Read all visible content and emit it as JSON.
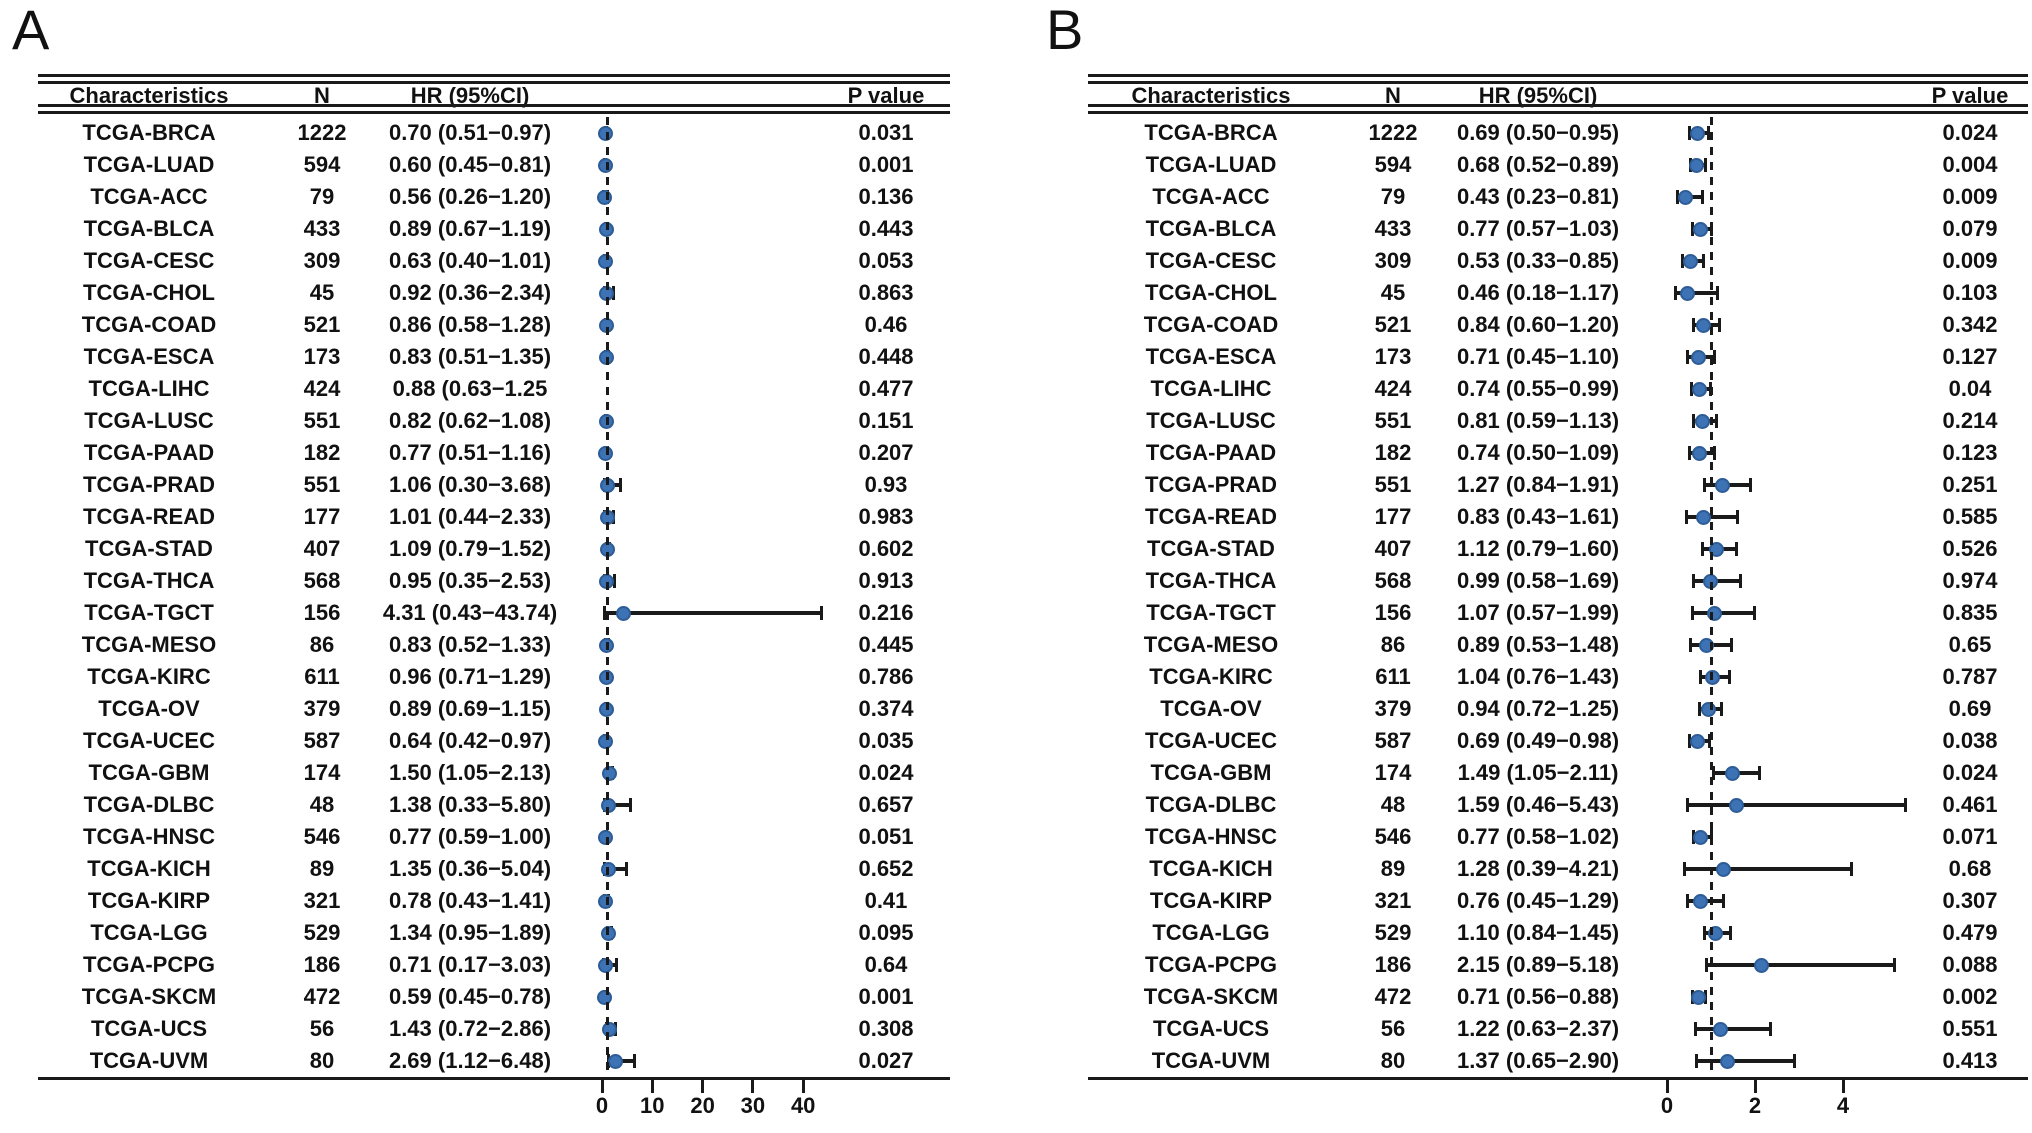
{
  "figure": {
    "description": "Two-panel forest plot of TCGA cohorts: Characteristics, N, HR (95%CI), P value"
  },
  "chart_data": [
    {
      "type": "scatter",
      "variant": "forest-plot",
      "panel": "A",
      "columns": {
        "characteristics": "Characteristics",
        "n": "N",
        "hr_ci": "HR (95%CI)",
        "p_value": "P value"
      },
      "x_axis": {
        "ticks": [
          0,
          10,
          20,
          30,
          40
        ],
        "reference_line": 1,
        "range": [
          0,
          45
        ]
      },
      "marker_color": "#3d72b4",
      "line_color": "#1a1a1a",
      "rows": [
        {
          "name": "TCGA-BRCA",
          "n": "1222",
          "hr": 0.7,
          "ci_low": 0.51,
          "ci_high": 0.97,
          "hr_ci_text": "0.70 (0.51−0.97)",
          "p_value": "0.031"
        },
        {
          "name": "TCGA-LUAD",
          "n": "594",
          "hr": 0.6,
          "ci_low": 0.45,
          "ci_high": 0.81,
          "hr_ci_text": "0.60 (0.45−0.81)",
          "p_value": "0.001"
        },
        {
          "name": "TCGA-ACC",
          "n": "79",
          "hr": 0.56,
          "ci_low": 0.26,
          "ci_high": 1.2,
          "hr_ci_text": "0.56 (0.26−1.20)",
          "p_value": "0.136"
        },
        {
          "name": "TCGA-BLCA",
          "n": "433",
          "hr": 0.89,
          "ci_low": 0.67,
          "ci_high": 1.19,
          "hr_ci_text": "0.89 (0.67−1.19)",
          "p_value": "0.443"
        },
        {
          "name": "TCGA-CESC",
          "n": "309",
          "hr": 0.63,
          "ci_low": 0.4,
          "ci_high": 1.01,
          "hr_ci_text": "0.63 (0.40−1.01)",
          "p_value": "0.053"
        },
        {
          "name": "TCGA-CHOL",
          "n": "45",
          "hr": 0.92,
          "ci_low": 0.36,
          "ci_high": 2.34,
          "hr_ci_text": "0.92 (0.36−2.34)",
          "p_value": "0.863"
        },
        {
          "name": "TCGA-COAD",
          "n": "521",
          "hr": 0.86,
          "ci_low": 0.58,
          "ci_high": 1.28,
          "hr_ci_text": "0.86 (0.58−1.28)",
          "p_value": "0.46"
        },
        {
          "name": "TCGA-ESCA",
          "n": "173",
          "hr": 0.83,
          "ci_low": 0.51,
          "ci_high": 1.35,
          "hr_ci_text": "0.83 (0.51−1.35)",
          "p_value": "0.448"
        },
        {
          "name": "TCGA-LIHC",
          "n": "424",
          "hr": 0.88,
          "ci_low": 0.63,
          "ci_high": 1.25,
          "hr_ci_text": "0.88 (0.63−1.25",
          "p_value": "0.477",
          "marker": false
        },
        {
          "name": "TCGA-LUSC",
          "n": "551",
          "hr": 0.82,
          "ci_low": 0.62,
          "ci_high": 1.08,
          "hr_ci_text": "0.82 (0.62−1.08)",
          "p_value": "0.151"
        },
        {
          "name": "TCGA-PAAD",
          "n": "182",
          "hr": 0.77,
          "ci_low": 0.51,
          "ci_high": 1.16,
          "hr_ci_text": "0.77 (0.51−1.16)",
          "p_value": "0.207"
        },
        {
          "name": "TCGA-PRAD",
          "n": "551",
          "hr": 1.06,
          "ci_low": 0.3,
          "ci_high": 3.68,
          "hr_ci_text": "1.06 (0.30−3.68)",
          "p_value": "0.93"
        },
        {
          "name": "TCGA-READ",
          "n": "177",
          "hr": 1.01,
          "ci_low": 0.44,
          "ci_high": 2.33,
          "hr_ci_text": "1.01 (0.44−2.33)",
          "p_value": "0.983"
        },
        {
          "name": "TCGA-STAD",
          "n": "407",
          "hr": 1.09,
          "ci_low": 0.79,
          "ci_high": 1.52,
          "hr_ci_text": "1.09 (0.79−1.52)",
          "p_value": "0.602"
        },
        {
          "name": "TCGA-THCA",
          "n": "568",
          "hr": 0.95,
          "ci_low": 0.35,
          "ci_high": 2.53,
          "hr_ci_text": "0.95 (0.35−2.53)",
          "p_value": "0.913"
        },
        {
          "name": "TCGA-TGCT",
          "n": "156",
          "hr": 4.31,
          "ci_low": 0.43,
          "ci_high": 43.74,
          "hr_ci_text": "4.31 (0.43−43.74)",
          "p_value": "0.216"
        },
        {
          "name": "TCGA-MESO",
          "n": "86",
          "hr": 0.83,
          "ci_low": 0.52,
          "ci_high": 1.33,
          "hr_ci_text": "0.83 (0.52−1.33)",
          "p_value": "0.445"
        },
        {
          "name": "TCGA-KIRC",
          "n": "611",
          "hr": 0.96,
          "ci_low": 0.71,
          "ci_high": 1.29,
          "hr_ci_text": "0.96 (0.71−1.29)",
          "p_value": "0.786"
        },
        {
          "name": "TCGA-OV",
          "n": "379",
          "hr": 0.89,
          "ci_low": 0.69,
          "ci_high": 1.15,
          "hr_ci_text": "0.89 (0.69−1.15)",
          "p_value": "0.374"
        },
        {
          "name": "TCGA-UCEC",
          "n": "587",
          "hr": 0.64,
          "ci_low": 0.42,
          "ci_high": 0.97,
          "hr_ci_text": "0.64 (0.42−0.97)",
          "p_value": "0.035"
        },
        {
          "name": "TCGA-GBM",
          "n": "174",
          "hr": 1.5,
          "ci_low": 1.05,
          "ci_high": 2.13,
          "hr_ci_text": "1.50 (1.05−2.13)",
          "p_value": "0.024"
        },
        {
          "name": "TCGA-DLBC",
          "n": "48",
          "hr": 1.38,
          "ci_low": 0.33,
          "ci_high": 5.8,
          "hr_ci_text": "1.38 (0.33−5.80)",
          "p_value": "0.657"
        },
        {
          "name": "TCGA-HNSC",
          "n": "546",
          "hr": 0.77,
          "ci_low": 0.59,
          "ci_high": 1.0,
          "hr_ci_text": "0.77 (0.59−1.00)",
          "p_value": "0.051"
        },
        {
          "name": "TCGA-KICH",
          "n": "89",
          "hr": 1.35,
          "ci_low": 0.36,
          "ci_high": 5.04,
          "hr_ci_text": "1.35 (0.36−5.04)",
          "p_value": "0.652"
        },
        {
          "name": "TCGA-KIRP",
          "n": "321",
          "hr": 0.78,
          "ci_low": 0.43,
          "ci_high": 1.41,
          "hr_ci_text": "0.78 (0.43−1.41)",
          "p_value": "0.41"
        },
        {
          "name": "TCGA-LGG",
          "n": "529",
          "hr": 1.34,
          "ci_low": 0.95,
          "ci_high": 1.89,
          "hr_ci_text": "1.34 (0.95−1.89)",
          "p_value": "0.095"
        },
        {
          "name": "TCGA-PCPG",
          "n": "186",
          "hr": 0.71,
          "ci_low": 0.17,
          "ci_high": 3.03,
          "hr_ci_text": "0.71 (0.17−3.03)",
          "p_value": "0.64"
        },
        {
          "name": "TCGA-SKCM",
          "n": "472",
          "hr": 0.59,
          "ci_low": 0.45,
          "ci_high": 0.78,
          "hr_ci_text": "0.59 (0.45−0.78)",
          "p_value": "0.001"
        },
        {
          "name": "TCGA-UCS",
          "n": "56",
          "hr": 1.43,
          "ci_low": 0.72,
          "ci_high": 2.86,
          "hr_ci_text": "1.43 (0.72−2.86)",
          "p_value": "0.308"
        },
        {
          "name": "TCGA-UVM",
          "n": "80",
          "hr": 2.69,
          "ci_low": 1.12,
          "ci_high": 6.48,
          "hr_ci_text": "2.69 (1.12−6.48)",
          "p_value": "0.027"
        }
      ]
    },
    {
      "type": "scatter",
      "variant": "forest-plot",
      "panel": "B",
      "columns": {
        "characteristics": "Characteristics",
        "n": "N",
        "hr_ci": "HR (95%CI)",
        "p_value": "P value"
      },
      "x_axis": {
        "ticks": [
          0,
          2,
          4
        ],
        "reference_line": 1,
        "range": [
          0,
          6
        ]
      },
      "marker_color": "#3d72b4",
      "line_color": "#1a1a1a",
      "rows": [
        {
          "name": "TCGA-BRCA",
          "n": "1222",
          "hr": 0.69,
          "ci_low": 0.5,
          "ci_high": 0.95,
          "hr_ci_text": "0.69 (0.50−0.95)",
          "p_value": "0.024"
        },
        {
          "name": "TCGA-LUAD",
          "n": "594",
          "hr": 0.68,
          "ci_low": 0.52,
          "ci_high": 0.89,
          "hr_ci_text": "0.68 (0.52−0.89)",
          "p_value": "0.004"
        },
        {
          "name": "TCGA-ACC",
          "n": "79",
          "hr": 0.43,
          "ci_low": 0.23,
          "ci_high": 0.81,
          "hr_ci_text": "0.43 (0.23−0.81)",
          "p_value": "0.009"
        },
        {
          "name": "TCGA-BLCA",
          "n": "433",
          "hr": 0.77,
          "ci_low": 0.57,
          "ci_high": 1.03,
          "hr_ci_text": "0.77 (0.57−1.03)",
          "p_value": "0.079"
        },
        {
          "name": "TCGA-CESC",
          "n": "309",
          "hr": 0.53,
          "ci_low": 0.33,
          "ci_high": 0.85,
          "hr_ci_text": "0.53 (0.33−0.85)",
          "p_value": "0.009"
        },
        {
          "name": "TCGA-CHOL",
          "n": "45",
          "hr": 0.46,
          "ci_low": 0.18,
          "ci_high": 1.17,
          "hr_ci_text": "0.46 (0.18−1.17)",
          "p_value": "0.103"
        },
        {
          "name": "TCGA-COAD",
          "n": "521",
          "hr": 0.84,
          "ci_low": 0.6,
          "ci_high": 1.2,
          "hr_ci_text": "0.84 (0.60−1.20)",
          "p_value": "0.342"
        },
        {
          "name": "TCGA-ESCA",
          "n": "173",
          "hr": 0.71,
          "ci_low": 0.45,
          "ci_high": 1.1,
          "hr_ci_text": "0.71 (0.45−1.10)",
          "p_value": "0.127"
        },
        {
          "name": "TCGA-LIHC",
          "n": "424",
          "hr": 0.74,
          "ci_low": 0.55,
          "ci_high": 0.99,
          "hr_ci_text": "0.74 (0.55−0.99)",
          "p_value": "0.04"
        },
        {
          "name": "TCGA-LUSC",
          "n": "551",
          "hr": 0.81,
          "ci_low": 0.59,
          "ci_high": 1.13,
          "hr_ci_text": "0.81 (0.59−1.13)",
          "p_value": "0.214"
        },
        {
          "name": "TCGA-PAAD",
          "n": "182",
          "hr": 0.74,
          "ci_low": 0.5,
          "ci_high": 1.09,
          "hr_ci_text": "0.74 (0.50−1.09)",
          "p_value": "0.123"
        },
        {
          "name": "TCGA-PRAD",
          "n": "551",
          "hr": 1.27,
          "ci_low": 0.84,
          "ci_high": 1.91,
          "hr_ci_text": "1.27 (0.84−1.91)",
          "p_value": "0.251"
        },
        {
          "name": "TCGA-READ",
          "n": "177",
          "hr": 0.83,
          "ci_low": 0.43,
          "ci_high": 1.61,
          "hr_ci_text": "0.83 (0.43−1.61)",
          "p_value": "0.585"
        },
        {
          "name": "TCGA-STAD",
          "n": "407",
          "hr": 1.12,
          "ci_low": 0.79,
          "ci_high": 1.6,
          "hr_ci_text": "1.12 (0.79−1.60)",
          "p_value": "0.526"
        },
        {
          "name": "TCGA-THCA",
          "n": "568",
          "hr": 0.99,
          "ci_low": 0.58,
          "ci_high": 1.69,
          "hr_ci_text": "0.99 (0.58−1.69)",
          "p_value": "0.974"
        },
        {
          "name": "TCGA-TGCT",
          "n": "156",
          "hr": 1.07,
          "ci_low": 0.57,
          "ci_high": 1.99,
          "hr_ci_text": "1.07 (0.57−1.99)",
          "p_value": "0.835"
        },
        {
          "name": "TCGA-MESO",
          "n": "86",
          "hr": 0.89,
          "ci_low": 0.53,
          "ci_high": 1.48,
          "hr_ci_text": "0.89 (0.53−1.48)",
          "p_value": "0.65"
        },
        {
          "name": "TCGA-KIRC",
          "n": "611",
          "hr": 1.04,
          "ci_low": 0.76,
          "ci_high": 1.43,
          "hr_ci_text": "1.04 (0.76−1.43)",
          "p_value": "0.787"
        },
        {
          "name": "TCGA-OV",
          "n": "379",
          "hr": 0.94,
          "ci_low": 0.72,
          "ci_high": 1.25,
          "hr_ci_text": "0.94 (0.72−1.25)",
          "p_value": "0.69"
        },
        {
          "name": "TCGA-UCEC",
          "n": "587",
          "hr": 0.69,
          "ci_low": 0.49,
          "ci_high": 0.98,
          "hr_ci_text": "0.69 (0.49−0.98)",
          "p_value": "0.038"
        },
        {
          "name": "TCGA-GBM",
          "n": "174",
          "hr": 1.49,
          "ci_low": 1.05,
          "ci_high": 2.11,
          "hr_ci_text": "1.49 (1.05−2.11)",
          "p_value": "0.024"
        },
        {
          "name": "TCGA-DLBC",
          "n": "48",
          "hr": 1.59,
          "ci_low": 0.46,
          "ci_high": 5.43,
          "hr_ci_text": "1.59 (0.46−5.43)",
          "p_value": "0.461"
        },
        {
          "name": "TCGA-HNSC",
          "n": "546",
          "hr": 0.77,
          "ci_low": 0.58,
          "ci_high": 1.02,
          "hr_ci_text": "0.77 (0.58−1.02)",
          "p_value": "0.071"
        },
        {
          "name": "TCGA-KICH",
          "n": "89",
          "hr": 1.28,
          "ci_low": 0.39,
          "ci_high": 4.21,
          "hr_ci_text": "1.28 (0.39−4.21)",
          "p_value": "0.68"
        },
        {
          "name": "TCGA-KIRP",
          "n": "321",
          "hr": 0.76,
          "ci_low": 0.45,
          "ci_high": 1.29,
          "hr_ci_text": "0.76 (0.45−1.29)",
          "p_value": "0.307"
        },
        {
          "name": "TCGA-LGG",
          "n": "529",
          "hr": 1.1,
          "ci_low": 0.84,
          "ci_high": 1.45,
          "hr_ci_text": "1.10 (0.84−1.45)",
          "p_value": "0.479"
        },
        {
          "name": "TCGA-PCPG",
          "n": "186",
          "hr": 2.15,
          "ci_low": 0.89,
          "ci_high": 5.18,
          "hr_ci_text": "2.15 (0.89−5.18)",
          "p_value": "0.088"
        },
        {
          "name": "TCGA-SKCM",
          "n": "472",
          "hr": 0.71,
          "ci_low": 0.56,
          "ci_high": 0.88,
          "hr_ci_text": "0.71 (0.56−0.88)",
          "p_value": "0.002"
        },
        {
          "name": "TCGA-UCS",
          "n": "56",
          "hr": 1.22,
          "ci_low": 0.63,
          "ci_high": 2.37,
          "hr_ci_text": "1.22 (0.63−2.37)",
          "p_value": "0.551"
        },
        {
          "name": "TCGA-UVM",
          "n": "80",
          "hr": 1.37,
          "ci_low": 0.65,
          "ci_high": 2.9,
          "hr_ci_text": "1.37 (0.65−2.90)",
          "p_value": "0.413"
        }
      ]
    }
  ]
}
